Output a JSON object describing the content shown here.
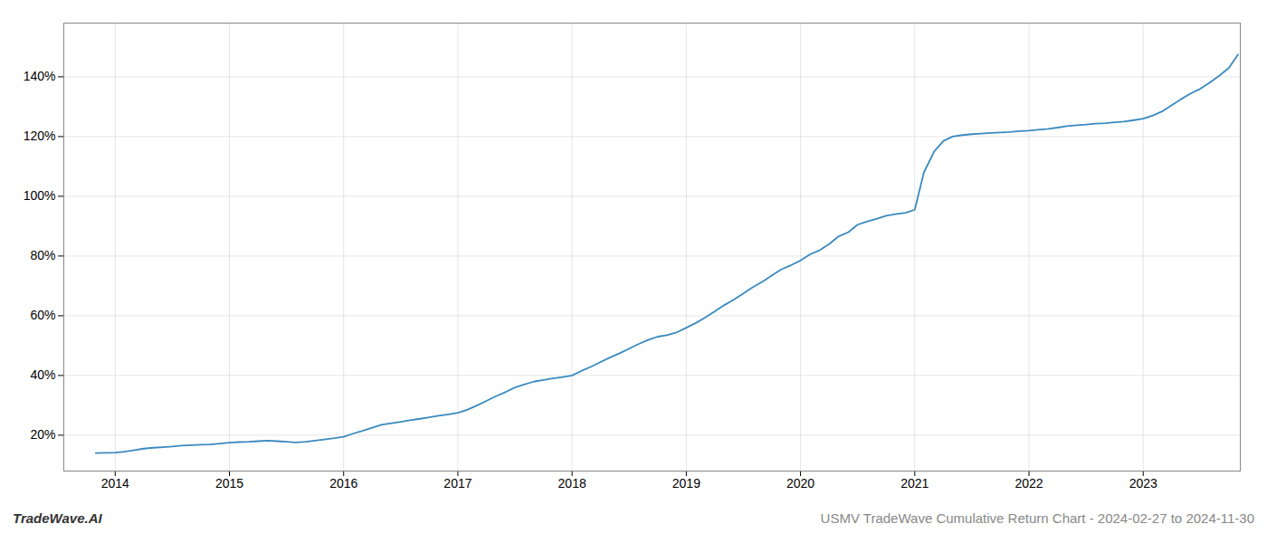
{
  "chart_data": {
    "type": "line",
    "annotations": [
      "TradeWave.AI",
      "USMV TradeWave Cumulative Return Chart - 2024-02-27 to 2024-11-30"
    ],
    "color": "#3a8abf",
    "grid": true,
    "xlim": [
      2013.55,
      2023.85
    ],
    "xticks": [
      2014,
      2015,
      2016,
      2017,
      2018,
      2019,
      2020,
      2021,
      2022,
      2023
    ],
    "ylim": [
      8,
      158
    ],
    "yticks": [
      {
        "value": 20,
        "label": "20%"
      },
      {
        "value": 40,
        "label": "40%"
      },
      {
        "value": 60,
        "label": "60%"
      },
      {
        "value": 80,
        "label": "80%"
      },
      {
        "value": 100,
        "label": "100%"
      },
      {
        "value": 120,
        "label": "120%"
      },
      {
        "value": 140,
        "label": "140%"
      }
    ],
    "x": [
      2013.83,
      2014.0,
      2014.08,
      2014.17,
      2014.25,
      2014.33,
      2014.42,
      2014.5,
      2014.58,
      2014.67,
      2014.75,
      2014.83,
      2014.92,
      2015.0,
      2015.08,
      2015.17,
      2015.25,
      2015.33,
      2015.42,
      2015.5,
      2015.58,
      2015.67,
      2015.75,
      2015.83,
      2015.92,
      2016.0,
      2016.08,
      2016.17,
      2016.25,
      2016.33,
      2016.42,
      2016.5,
      2016.58,
      2016.67,
      2016.75,
      2016.83,
      2016.92,
      2017.0,
      2017.08,
      2017.17,
      2017.25,
      2017.33,
      2017.42,
      2017.5,
      2017.58,
      2017.67,
      2017.75,
      2017.83,
      2017.92,
      2018.0,
      2018.08,
      2018.17,
      2018.25,
      2018.33,
      2018.42,
      2018.5,
      2018.58,
      2018.67,
      2018.75,
      2018.83,
      2018.92,
      2019.0,
      2019.08,
      2019.17,
      2019.25,
      2019.33,
      2019.42,
      2019.5,
      2019.58,
      2019.67,
      2019.75,
      2019.83,
      2019.92,
      2020.0,
      2020.08,
      2020.17,
      2020.25,
      2020.33,
      2020.42,
      2020.5,
      2020.58,
      2020.67,
      2020.75,
      2020.83,
      2020.92,
      2021.0,
      2021.08,
      2021.17,
      2021.25,
      2021.33,
      2021.42,
      2021.5,
      2021.58,
      2021.67,
      2021.75,
      2021.83,
      2021.92,
      2022.0,
      2022.08,
      2022.17,
      2022.25,
      2022.33,
      2022.42,
      2022.5,
      2022.58,
      2022.67,
      2022.75,
      2022.83,
      2022.92,
      2023.0,
      2023.08,
      2023.17,
      2023.25,
      2023.33,
      2023.42,
      2023.5,
      2023.58,
      2023.67,
      2023.75,
      2023.83
    ],
    "values": [
      14.0,
      14.2,
      14.5,
      15.0,
      15.5,
      15.8,
      16.0,
      16.2,
      16.5,
      16.7,
      16.8,
      16.9,
      17.2,
      17.5,
      17.7,
      17.8,
      18.0,
      18.2,
      18.0,
      17.8,
      17.6,
      17.8,
      18.2,
      18.6,
      19.0,
      19.5,
      20.5,
      21.5,
      22.5,
      23.5,
      24.0,
      24.5,
      25.0,
      25.5,
      26.0,
      26.5,
      27.0,
      27.5,
      28.5,
      30.0,
      31.5,
      33.0,
      34.5,
      36.0,
      37.0,
      38.0,
      38.5,
      39.0,
      39.5,
      40.0,
      41.5,
      43.0,
      44.5,
      46.0,
      47.5,
      49.0,
      50.5,
      52.0,
      53.0,
      53.5,
      54.5,
      56.0,
      57.5,
      59.5,
      61.5,
      63.5,
      65.5,
      67.5,
      69.5,
      71.5,
      73.5,
      75.5,
      77.0,
      78.5,
      80.5,
      82.0,
      84.0,
      86.5,
      88.0,
      90.5,
      91.5,
      92.5,
      93.5,
      94.0,
      94.5,
      95.5,
      108.0,
      115.0,
      118.5,
      120.0,
      120.5,
      120.8,
      121.0,
      121.2,
      121.4,
      121.5,
      121.8,
      122.0,
      122.3,
      122.6,
      123.0,
      123.5,
      123.8,
      124.0,
      124.3,
      124.5,
      124.8,
      125.0,
      125.5,
      126.0,
      127.0,
      128.5,
      130.5,
      132.5,
      134.5,
      136.0,
      138.0,
      140.5,
      143.0,
      147.5
    ]
  }
}
